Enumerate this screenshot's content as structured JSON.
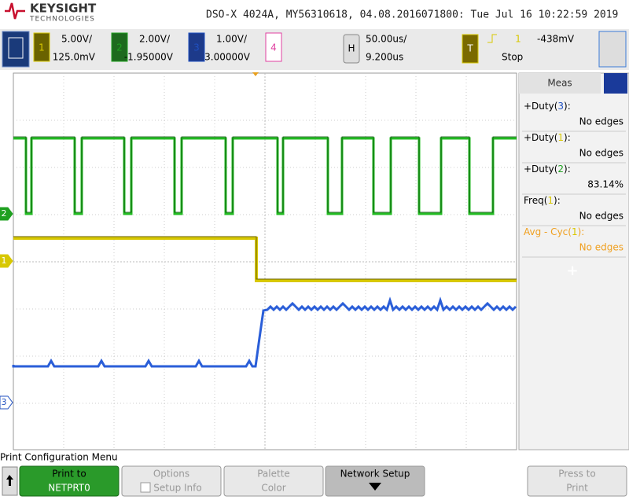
{
  "brand": {
    "name": "KEYSIGHT",
    "sub": "TECHNOLOGIES"
  },
  "header": "DSO-X 4024A, MY56310618, 04.08.2016071800: Tue Jul 16 10:22:59 2019",
  "channels": [
    {
      "num": "1",
      "scale": "5.00V/",
      "offset": "125.0mV"
    },
    {
      "num": "2",
      "scale": "2.00V/",
      "offset": "-1.95000V"
    },
    {
      "num": "3",
      "scale": "1.00V/",
      "offset": "3.00000V"
    },
    {
      "num": "4"
    }
  ],
  "horizontal": {
    "key": "H",
    "scale": "50.00us/",
    "delay": "9.200us"
  },
  "trigger": {
    "key": "T",
    "source": "1",
    "level": "-438mV",
    "state": "Stop"
  },
  "ground_markers": [
    "2",
    "1",
    "3"
  ],
  "meas": {
    "title": "Meas",
    "items": [
      {
        "pre": "+Duty(",
        "ch": "3",
        "post": "):",
        "value": "No edges"
      },
      {
        "pre": "+Duty(",
        "ch": "1",
        "post": "):",
        "value": "No edges"
      },
      {
        "pre": "+Duty(",
        "ch": "2",
        "post": "):",
        "value": "83.14%"
      },
      {
        "pre": "Freq(",
        "ch": "1",
        "post": "):",
        "value": "No edges"
      },
      {
        "pre": "Avg - Cyc(",
        "ch": "1",
        "post": "):",
        "value": "No edges"
      }
    ],
    "add": "+"
  },
  "menu": {
    "title": "Print Configuration Menu",
    "softkeys": [
      {
        "top": "Print to",
        "bottom": "NETPRT0"
      },
      {
        "top": "Options",
        "bottom": "Setup Info"
      },
      {
        "top": "Palette",
        "bottom": "Color"
      },
      {
        "top": "Network Setup"
      },
      {
        "top": "Press to",
        "bottom": "Print"
      }
    ]
  }
}
